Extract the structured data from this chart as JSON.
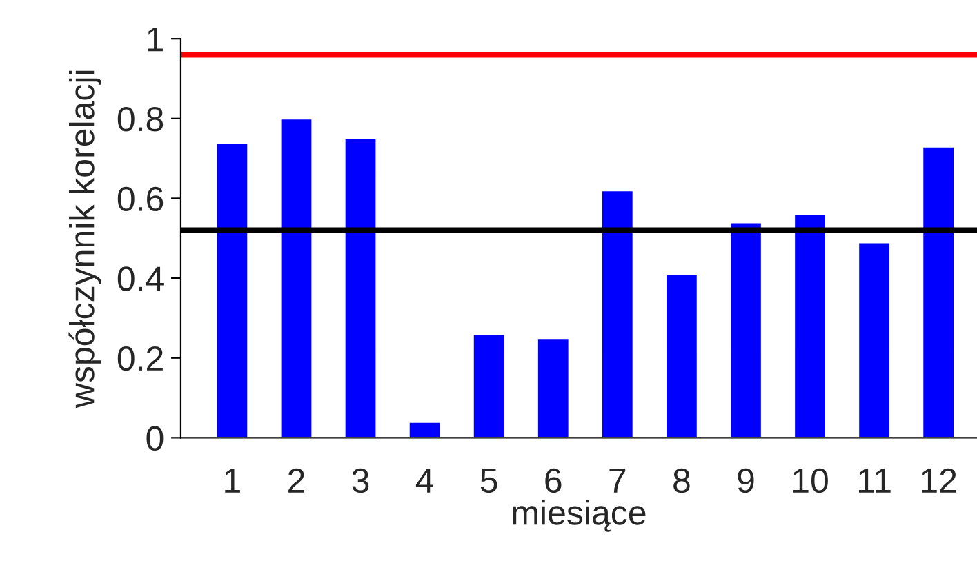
{
  "chart_data": {
    "type": "bar",
    "xlabel": "miesiące",
    "ylabel": "współczynnik korelacji",
    "categories": [
      "1",
      "2",
      "3",
      "4",
      "5",
      "6",
      "7",
      "8",
      "9",
      "10",
      "11",
      "12"
    ],
    "values": [
      0.74,
      0.8,
      0.75,
      0.04,
      0.26,
      0.25,
      0.62,
      0.41,
      0.54,
      0.56,
      0.49,
      0.73
    ],
    "color": "#0000ff",
    "ylim": [
      0,
      1
    ],
    "yticks": [
      0,
      {
        "value": 0.2,
        "label": "0.2"
      },
      {
        "value": 0.4,
        "label": "0.4"
      },
      {
        "value": 0.6,
        "label": "0.6"
      },
      {
        "value": 0.8,
        "label": "0.8"
      },
      1
    ],
    "ref_lines": [
      {
        "axis": "y",
        "value": 0.96,
        "label": null,
        "color": "#ff0000"
      },
      {
        "axis": "y",
        "value": 0.52,
        "label": null,
        "color": "#000000"
      }
    ],
    "grid": false,
    "legend": false
  }
}
